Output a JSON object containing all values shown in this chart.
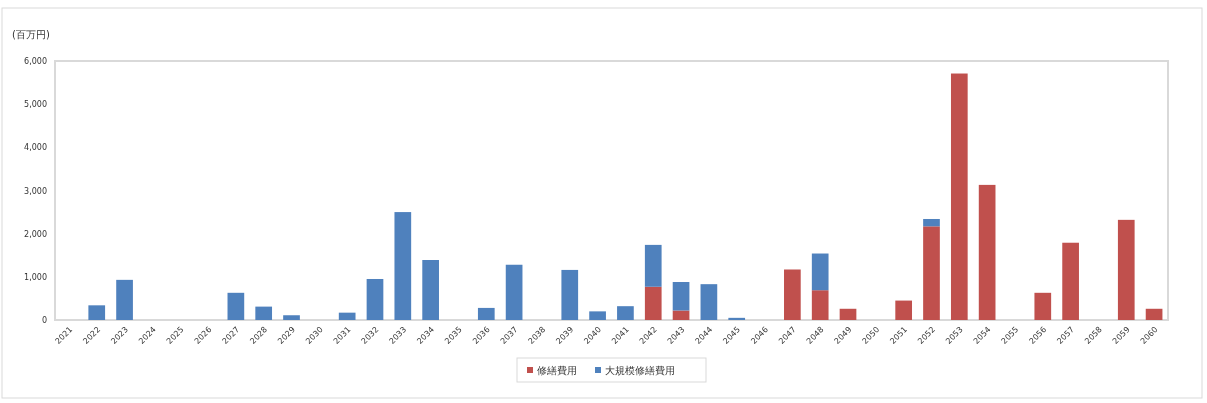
{
  "chart_data": {
    "type": "bar",
    "stacked": true,
    "ylabel": "(百万円)",
    "categories": [
      "2021",
      "2022",
      "2023",
      "2024",
      "2025",
      "2026",
      "2027",
      "2028",
      "2029",
      "2030",
      "2031",
      "2032",
      "2033",
      "2034",
      "2035",
      "2036",
      "2037",
      "2038",
      "2039",
      "2040",
      "2041",
      "2042",
      "2043",
      "2044",
      "2045",
      "2046",
      "2047",
      "2048",
      "2049",
      "2050",
      "2051",
      "2052",
      "2053",
      "2054",
      "2055",
      "2056",
      "2057",
      "2058",
      "2059",
      "2060"
    ],
    "series": [
      {
        "name": "修繕費用",
        "color": "#c0504d",
        "values": [
          0,
          0,
          0,
          0,
          0,
          0,
          0,
          0,
          0,
          0,
          0,
          0,
          0,
          0,
          0,
          0,
          0,
          0,
          0,
          0,
          0,
          770,
          220,
          0,
          0,
          0,
          1170,
          690,
          260,
          0,
          450,
          2170,
          5710,
          3130,
          0,
          630,
          1790,
          0,
          2320,
          260
        ]
      },
      {
        "name": "大規模修繕費用",
        "color": "#4f81bd",
        "values": [
          0,
          340,
          930,
          0,
          0,
          0,
          630,
          310,
          110,
          0,
          170,
          950,
          2500,
          1390,
          0,
          280,
          1280,
          0,
          1160,
          200,
          320,
          970,
          660,
          830,
          50,
          0,
          0,
          850,
          0,
          0,
          0,
          170,
          0,
          0,
          0,
          0,
          0,
          0,
          0,
          0
        ]
      }
    ],
    "ylim": [
      0,
      6000
    ],
    "yticks": [
      0,
      {
        "value": 1000,
        "label": "1,000"
      },
      {
        "value": 2000,
        "label": "2,000"
      },
      {
        "value": 3000,
        "label": "3,000"
      },
      {
        "value": 4000,
        "label": "4,000"
      },
      {
        "value": 5000,
        "label": "5,000"
      },
      {
        "value": 6000,
        "label": "6,000"
      }
    ],
    "legend": "bottom"
  }
}
